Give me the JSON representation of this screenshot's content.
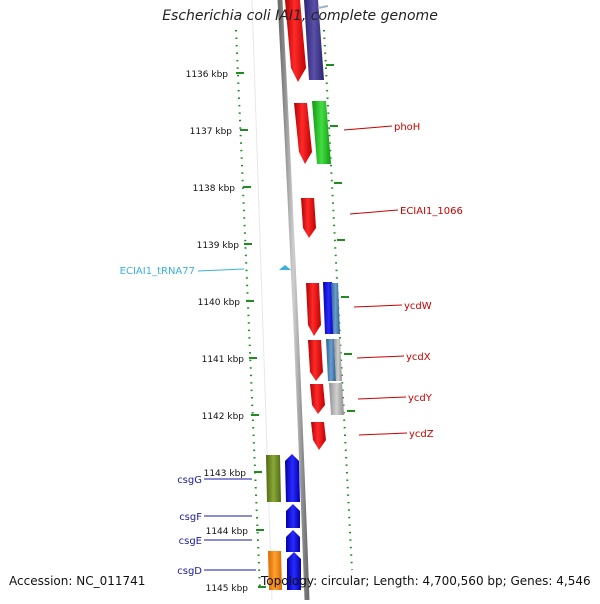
{
  "title": "Escherichia coli IAI1, complete genome",
  "footer": {
    "accession": "Accession: NC_011741",
    "summary": "Topology: circular; Length: 4,700,560 bp; Genes: 4,546"
  },
  "colors": {
    "background": "#ffffff",
    "backbone": "#8c8c8c",
    "tick": "#1e8c1e",
    "gene_label": "#cc0000",
    "trna_label": "#3ab0e0",
    "csg_label": "#1a1aa0"
  },
  "tick_labels": [
    "1136 kbp",
    "1137 kbp",
    "1138 kbp",
    "1139 kbp",
    "1140 kbp",
    "1141 kbp",
    "1142 kbp",
    "1143 kbp",
    "1144 kbp",
    "1145 kbp"
  ],
  "gene_labels": [
    "phoH",
    "ECIAI1_1066",
    "ycdW",
    "ycdX",
    "ycdY",
    "ycdZ"
  ],
  "trna_label": "ECIAI1_tRNA77",
  "csg_labels": [
    "csgG",
    "csgF",
    "csgE",
    "csgD"
  ]
}
